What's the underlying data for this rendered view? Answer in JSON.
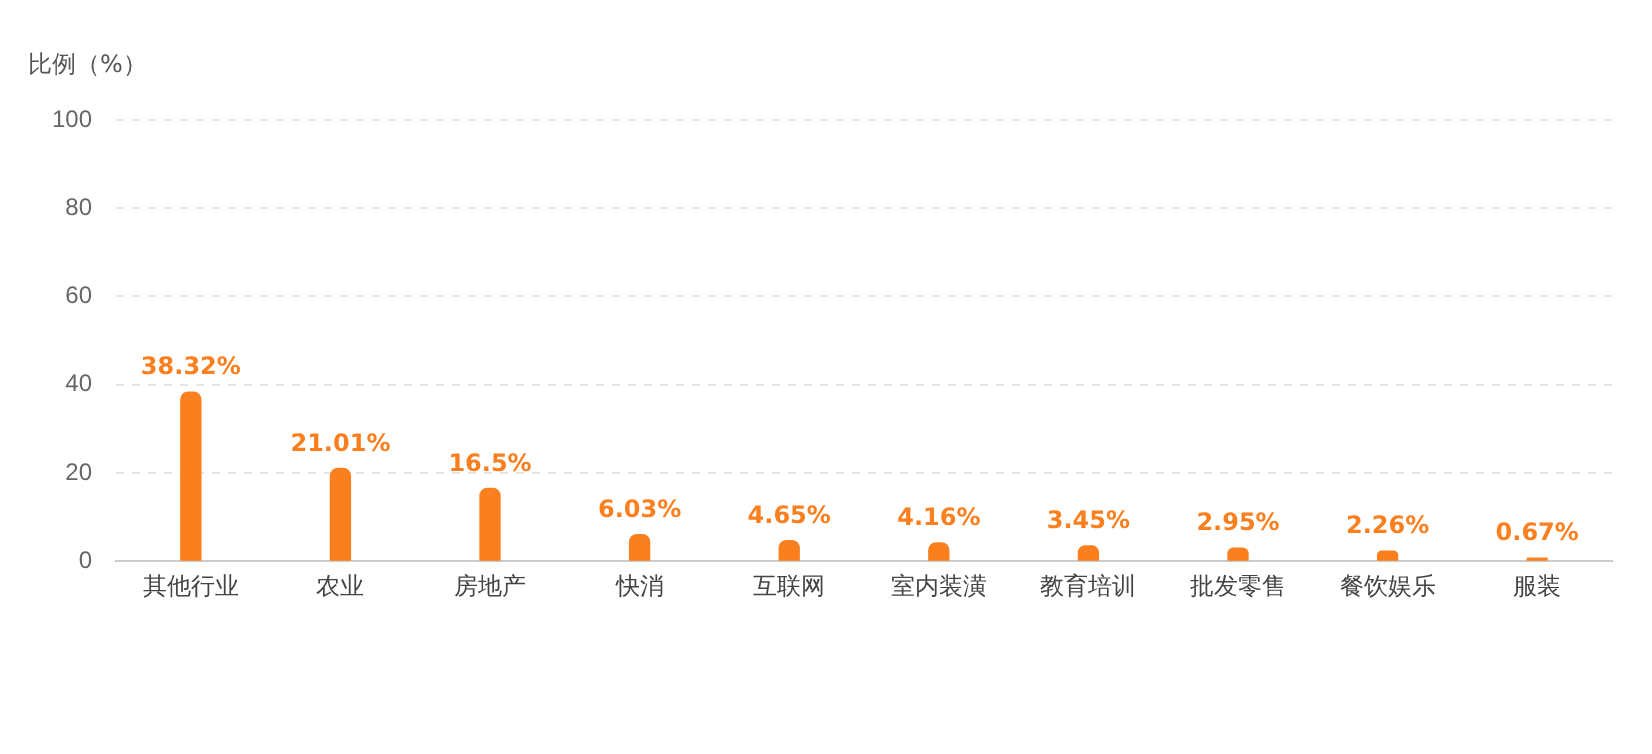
{
  "chart_data": {
    "type": "bar",
    "ylabel": "比例（%）",
    "categories": [
      "其他行业",
      "农业",
      "房地产",
      "快消",
      "互联网",
      "室内装潢",
      "教育培训",
      "批发零售",
      "餐饮娱乐",
      "服装"
    ],
    "values": [
      38.32,
      21.01,
      16.5,
      6.03,
      4.65,
      4.16,
      3.45,
      2.95,
      2.26,
      0.67
    ],
    "value_labels": [
      "38.32%",
      "21.01%",
      "16.5%",
      "6.03%",
      "4.65%",
      "4.16%",
      "3.45%",
      "2.95%",
      "2.26%",
      "0.67%"
    ],
    "color": "#fa7f1e",
    "ylim": [
      0,
      100
    ],
    "yticks": [
      0,
      20,
      40,
      60,
      80,
      100
    ],
    "grid": "y"
  }
}
